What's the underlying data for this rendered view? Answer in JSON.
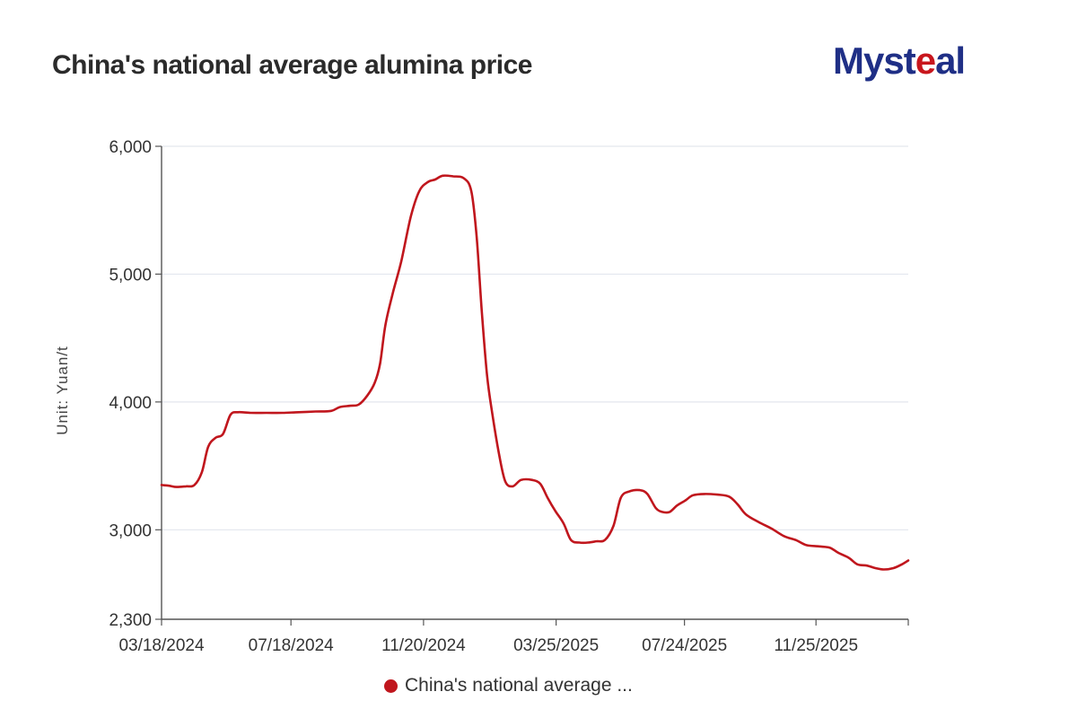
{
  "title": "China's national average alumina price",
  "logo": {
    "text_main": "Myst",
    "text_accent": "e",
    "text_end": "al"
  },
  "chart_data": {
    "type": "line",
    "title": "China's national average alumina price",
    "xlabel": "",
    "ylabel": "Unit: Yuan/t",
    "ylim": [
      2300,
      6000
    ],
    "yticks": [
      2300,
      3000,
      4000,
      5000,
      6000
    ],
    "ytick_labels": [
      "2,300",
      "3,000",
      "4,000",
      "5,000",
      "6,000"
    ],
    "xlim": [
      "2024-03-18",
      "2026-02-20"
    ],
    "xticks": [
      "2024-03-18",
      "2024-07-18",
      "2024-11-20",
      "2025-03-25",
      "2025-07-24",
      "2025-11-25"
    ],
    "xtick_labels": [
      "03/18/2024",
      "07/18/2024",
      "11/20/2024",
      "03/25/2025",
      "07/24/2025",
      "11/25/2025"
    ],
    "grid": true,
    "series": [
      {
        "name": "China's national average ...",
        "color": "#c0161d",
        "points": [
          [
            "2024-03-18",
            3350
          ],
          [
            "2024-03-25",
            3345
          ],
          [
            "2024-04-01",
            3335
          ],
          [
            "2024-04-10",
            3340
          ],
          [
            "2024-04-18",
            3350
          ],
          [
            "2024-04-25",
            3450
          ],
          [
            "2024-05-01",
            3650
          ],
          [
            "2024-05-08",
            3720
          ],
          [
            "2024-05-15",
            3750
          ],
          [
            "2024-05-22",
            3900
          ],
          [
            "2024-05-29",
            3920
          ],
          [
            "2024-06-10",
            3915
          ],
          [
            "2024-06-25",
            3915
          ],
          [
            "2024-07-10",
            3915
          ],
          [
            "2024-07-25",
            3920
          ],
          [
            "2024-08-10",
            3925
          ],
          [
            "2024-08-25",
            3930
          ],
          [
            "2024-09-02",
            3960
          ],
          [
            "2024-09-12",
            3970
          ],
          [
            "2024-09-20",
            3980
          ],
          [
            "2024-09-28",
            4050
          ],
          [
            "2024-10-05",
            4150
          ],
          [
            "2024-10-10",
            4300
          ],
          [
            "2024-10-15",
            4600
          ],
          [
            "2024-10-22",
            4850
          ],
          [
            "2024-10-30",
            5100
          ],
          [
            "2024-11-08",
            5450
          ],
          [
            "2024-11-16",
            5650
          ],
          [
            "2024-11-24",
            5720
          ],
          [
            "2024-12-01",
            5740
          ],
          [
            "2024-12-08",
            5770
          ],
          [
            "2024-12-18",
            5765
          ],
          [
            "2024-12-28",
            5750
          ],
          [
            "2025-01-04",
            5650
          ],
          [
            "2025-01-09",
            5300
          ],
          [
            "2025-01-14",
            4700
          ],
          [
            "2025-01-19",
            4200
          ],
          [
            "2025-01-24",
            3900
          ],
          [
            "2025-01-30",
            3600
          ],
          [
            "2025-02-05",
            3380
          ],
          [
            "2025-02-12",
            3340
          ],
          [
            "2025-02-20",
            3390
          ],
          [
            "2025-03-02",
            3390
          ],
          [
            "2025-03-10",
            3360
          ],
          [
            "2025-03-17",
            3250
          ],
          [
            "2025-03-24",
            3150
          ],
          [
            "2025-04-01",
            3050
          ],
          [
            "2025-04-08",
            2920
          ],
          [
            "2025-04-16",
            2900
          ],
          [
            "2025-04-24",
            2900
          ],
          [
            "2025-05-02",
            2910
          ],
          [
            "2025-05-10",
            2920
          ],
          [
            "2025-05-18",
            3030
          ],
          [
            "2025-05-25",
            3250
          ],
          [
            "2025-06-02",
            3300
          ],
          [
            "2025-06-12",
            3310
          ],
          [
            "2025-06-19",
            3280
          ],
          [
            "2025-06-27",
            3170
          ],
          [
            "2025-07-03",
            3140
          ],
          [
            "2025-07-10",
            3140
          ],
          [
            "2025-07-17",
            3190
          ],
          [
            "2025-07-25",
            3230
          ],
          [
            "2025-08-01",
            3270
          ],
          [
            "2025-08-12",
            3280
          ],
          [
            "2025-08-24",
            3275
          ],
          [
            "2025-09-04",
            3260
          ],
          [
            "2025-09-12",
            3200
          ],
          [
            "2025-09-20",
            3120
          ],
          [
            "2025-10-02",
            3060
          ],
          [
            "2025-10-14",
            3010
          ],
          [
            "2025-10-26",
            2950
          ],
          [
            "2025-11-06",
            2920
          ],
          [
            "2025-11-16",
            2880
          ],
          [
            "2025-11-28",
            2870
          ],
          [
            "2025-12-08",
            2860
          ],
          [
            "2025-12-16",
            2820
          ],
          [
            "2025-12-26",
            2780
          ],
          [
            "2026-01-03",
            2730
          ],
          [
            "2026-01-12",
            2720
          ],
          [
            "2026-01-20",
            2700
          ],
          [
            "2026-01-28",
            2690
          ],
          [
            "2026-02-06",
            2700
          ],
          [
            "2026-02-14",
            2730
          ],
          [
            "2026-02-20",
            2760
          ]
        ]
      }
    ],
    "legend": {
      "position": "bottom-center",
      "label": "China's national average ..."
    }
  }
}
